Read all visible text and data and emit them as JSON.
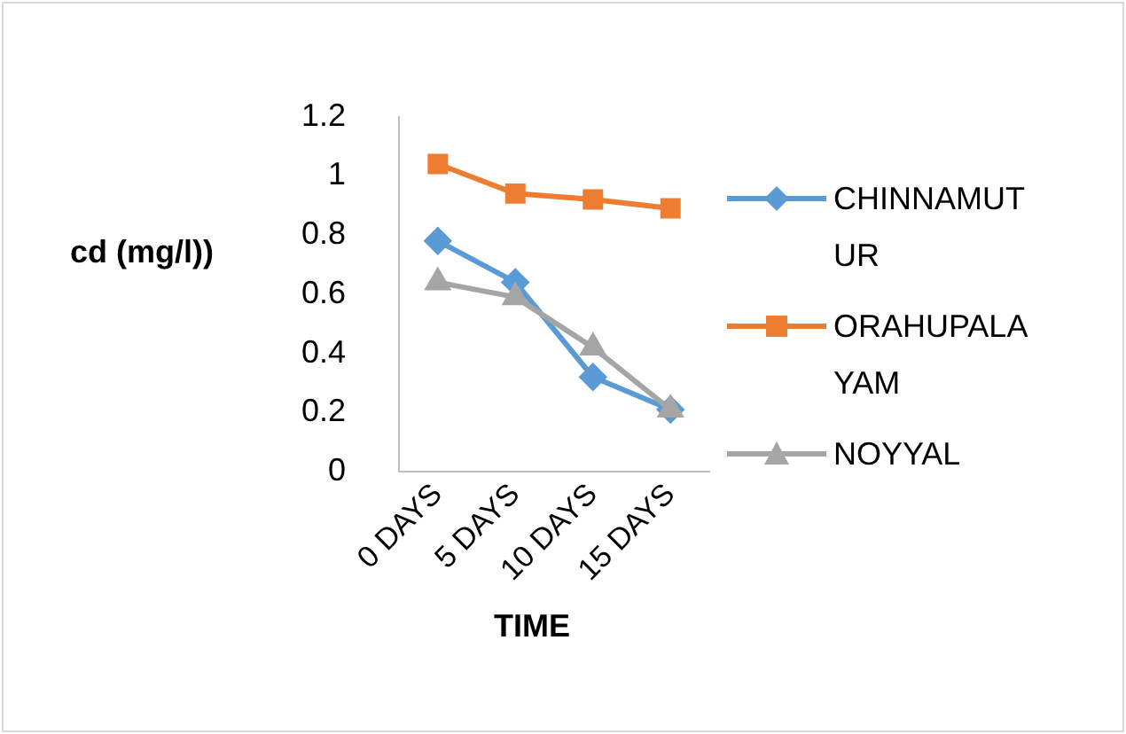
{
  "chart_data": {
    "type": "line",
    "xlabel": "TIME",
    "ylabel": "cd (mg/l))",
    "categories": [
      "0 DAYS",
      "5 DAYS",
      "10 DAYS",
      "15 DAYS"
    ],
    "series": [
      {
        "name": "CHINNAMUTUR",
        "color": "#5b9bd5",
        "marker": "diamond",
        "values": [
          0.78,
          0.64,
          0.32,
          0.21
        ]
      },
      {
        "name": "ORAHUPALAYAM",
        "color": "#ed7d31",
        "marker": "square",
        "values": [
          1.04,
          0.94,
          0.92,
          0.89
        ]
      },
      {
        "name": "NOYYAL",
        "color": "#a5a5a5",
        "marker": "triangle",
        "values": [
          0.64,
          0.59,
          0.42,
          0.21
        ]
      }
    ],
    "ylim": [
      0,
      1.2
    ],
    "yticks": [
      0,
      0.2,
      0.4,
      0.6,
      0.8,
      1,
      1.2
    ],
    "grid": false,
    "legend": "right",
    "line_style": "solid"
  }
}
